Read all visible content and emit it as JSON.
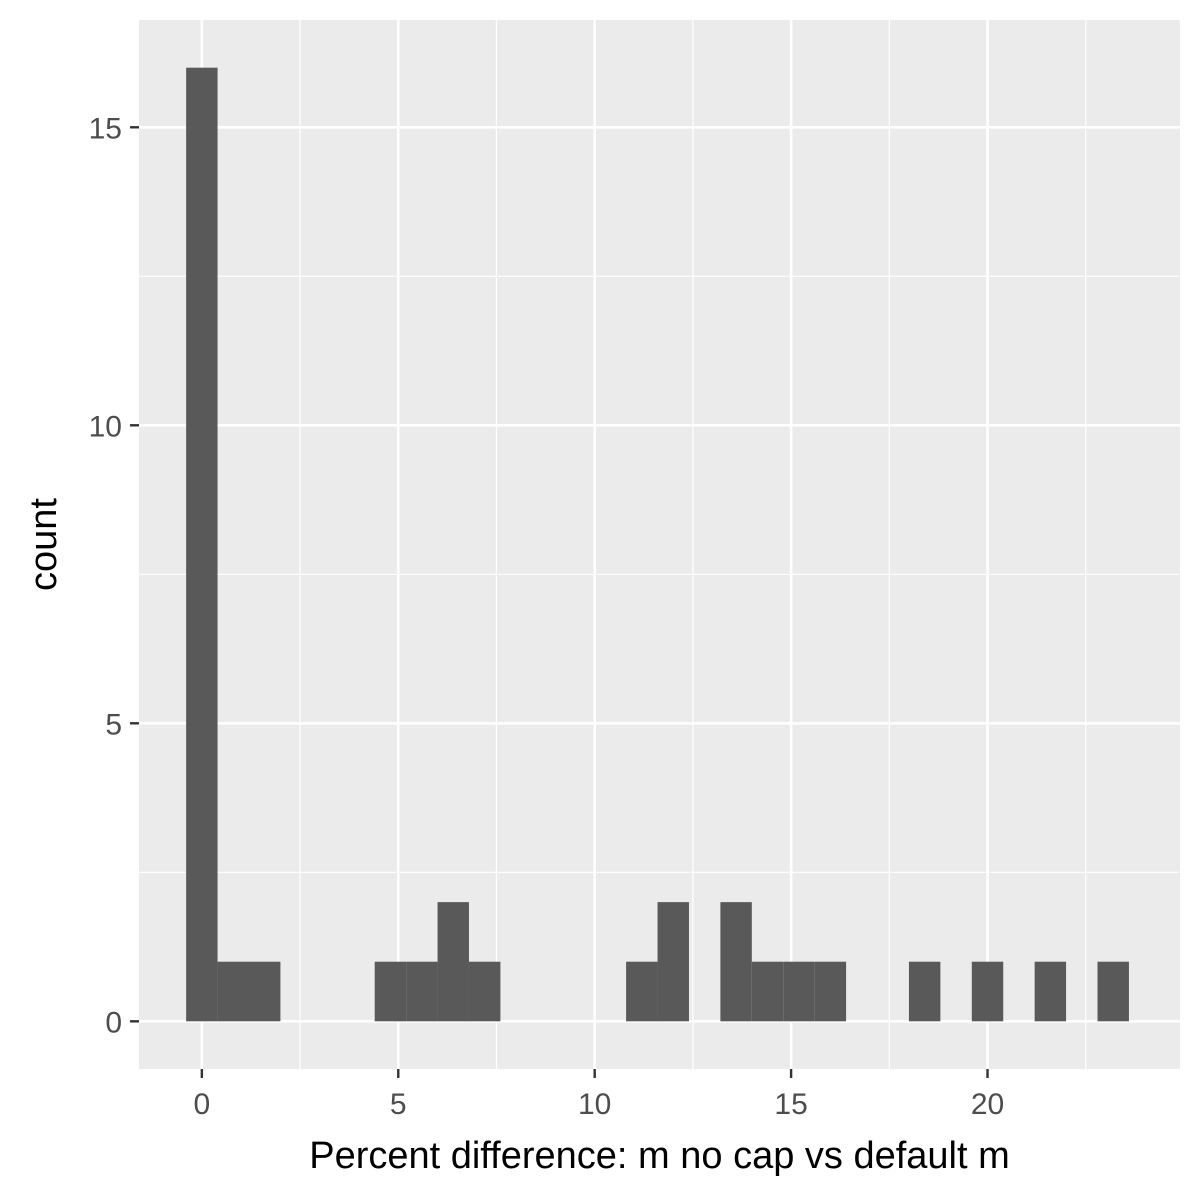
{
  "chart_data": {
    "type": "bar",
    "subtype": "histogram",
    "title": "",
    "xlabel": "Percent difference: m no cap vs default m",
    "ylabel": "count",
    "xlim": [
      -1.6,
      24.9
    ],
    "ylim": [
      -0.8,
      16.8
    ],
    "bin_width": 0.8,
    "x_ticks": [
      0,
      5,
      10,
      15,
      20
    ],
    "x_tick_labels": [
      "0",
      "5",
      "10",
      "15",
      "20"
    ],
    "y_ticks": [
      0,
      5,
      10,
      15
    ],
    "y_tick_labels": [
      "0",
      "5",
      "10",
      "15"
    ],
    "bins": [
      {
        "start": -0.4,
        "end": 0.4,
        "count": 16
      },
      {
        "start": 0.4,
        "end": 1.2,
        "count": 1
      },
      {
        "start": 1.2,
        "end": 2.0,
        "count": 1
      },
      {
        "start": 4.4,
        "end": 5.2,
        "count": 1
      },
      {
        "start": 5.2,
        "end": 6.0,
        "count": 1
      },
      {
        "start": 6.0,
        "end": 6.8,
        "count": 2
      },
      {
        "start": 6.8,
        "end": 7.6,
        "count": 1
      },
      {
        "start": 10.8,
        "end": 11.6,
        "count": 1
      },
      {
        "start": 11.6,
        "end": 12.4,
        "count": 2
      },
      {
        "start": 13.2,
        "end": 14.0,
        "count": 2
      },
      {
        "start": 14.0,
        "end": 14.8,
        "count": 1
      },
      {
        "start": 14.8,
        "end": 15.6,
        "count": 1
      },
      {
        "start": 15.6,
        "end": 16.4,
        "count": 1
      },
      {
        "start": 18.0,
        "end": 18.8,
        "count": 1
      },
      {
        "start": 19.6,
        "end": 20.4,
        "count": 1
      },
      {
        "start": 21.2,
        "end": 22.0,
        "count": 1
      },
      {
        "start": 22.8,
        "end": 23.6,
        "count": 1
      }
    ],
    "grid": true,
    "legend": "none"
  },
  "colors": {
    "panel_background": "#ebebeb",
    "grid_major": "#ffffff",
    "grid_minor": "#ffffff",
    "bar_fill": "#595959",
    "tick_mark": "#333333"
  }
}
